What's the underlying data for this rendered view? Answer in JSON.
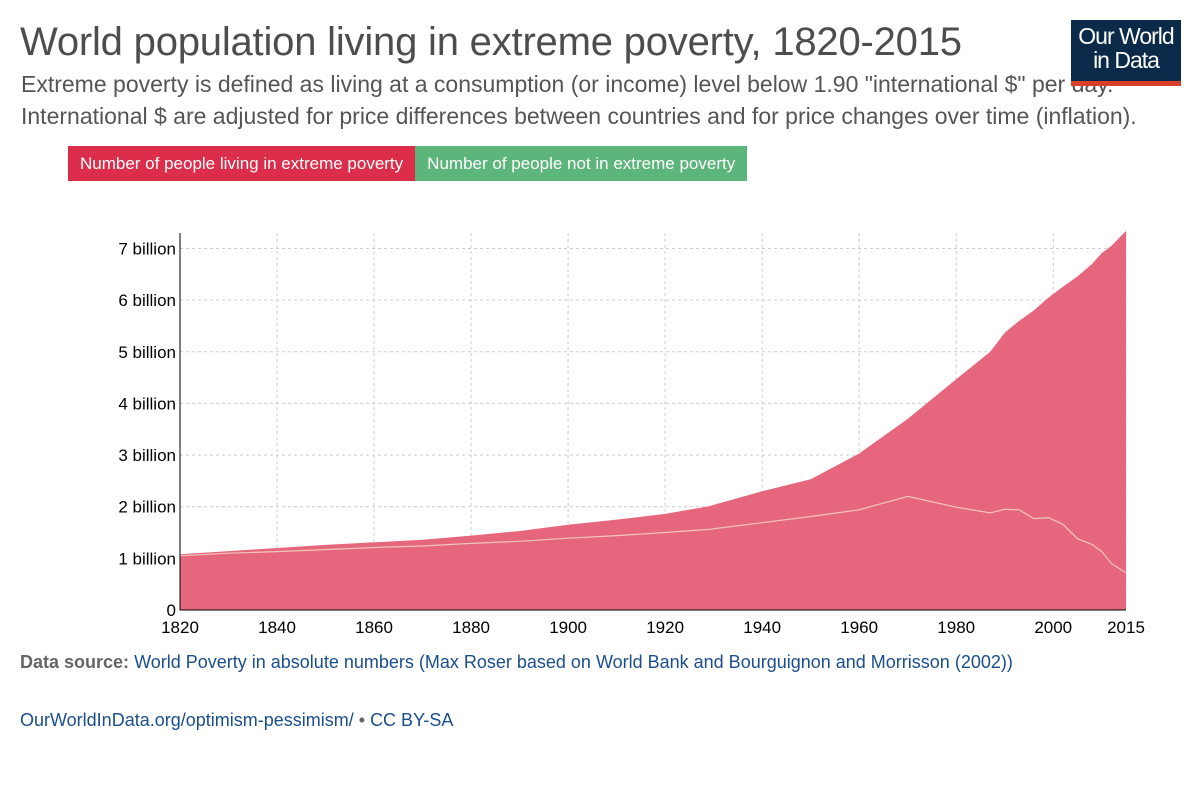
{
  "header": {
    "title": "World population living in extreme poverty, 1820-2015",
    "subtitle_line1": "Extreme poverty is defined as living at a consumption (or income) level below 1.90 \"international $\" per day.",
    "subtitle_line2": "International $ are adjusted for price differences between countries and for price changes over time (inflation).",
    "logo_line1": "Our World",
    "logo_line2": "in Data"
  },
  "colors": {
    "poverty": "#e6677d",
    "not_poverty": "#5cb57a",
    "legend_poverty": "#dc2d4a",
    "legend_not_poverty": "#5cb57a"
  },
  "chart_data": {
    "type": "area",
    "stacked": true,
    "title": "World population living in extreme poverty, 1820-2015",
    "xlabel": "",
    "ylabel": "",
    "xlim": [
      1820,
      2015
    ],
    "ylim": [
      0,
      7300000000
    ],
    "x_ticks": [
      1820,
      1840,
      1860,
      1880,
      1900,
      1920,
      1940,
      1960,
      1980,
      2000,
      2015
    ],
    "x_tick_labels": [
      "1820",
      "1840",
      "1860",
      "1880",
      "1900",
      "1920",
      "1940",
      "1960",
      "1980",
      "2000",
      "2015"
    ],
    "y_ticks": [
      0,
      1000000000,
      2000000000,
      3000000000,
      4000000000,
      5000000000,
      6000000000,
      7000000000
    ],
    "y_tick_labels": [
      "0",
      "1 billion",
      "2 billion",
      "3 billion",
      "4 billion",
      "5 billion",
      "6 billion",
      "7 billion"
    ],
    "grid": true,
    "legend_position": "top-left",
    "x": [
      1820,
      1830,
      1840,
      1850,
      1860,
      1870,
      1880,
      1890,
      1900,
      1910,
      1920,
      1929,
      1940,
      1950,
      1960,
      1970,
      1980,
      1987,
      1990,
      1993,
      1996,
      1999,
      2002,
      2005,
      2008,
      2010,
      2012,
      2015
    ],
    "series": [
      {
        "name": "Number of people living in extreme poverty",
        "values": [
          1050000000,
          1100000000,
          1130000000,
          1170000000,
          1210000000,
          1240000000,
          1290000000,
          1330000000,
          1390000000,
          1440000000,
          1500000000,
          1560000000,
          1690000000,
          1810000000,
          1940000000,
          2200000000,
          1990000000,
          1880000000,
          1950000000,
          1940000000,
          1770000000,
          1790000000,
          1660000000,
          1380000000,
          1270000000,
          1130000000,
          900000000,
          720000000
        ]
      },
      {
        "name": "Number of people not in extreme poverty",
        "values": [
          30000000,
          40000000,
          70000000,
          90000000,
          100000000,
          120000000,
          150000000,
          200000000,
          260000000,
          310000000,
          360000000,
          450000000,
          610000000,
          720000000,
          1090000000,
          1500000000,
          2480000000,
          3120000000,
          3420000000,
          3660000000,
          4030000000,
          4260000000,
          4600000000,
          5080000000,
          5430000000,
          5780000000,
          6150000000,
          6620000000
        ]
      }
    ]
  },
  "source": {
    "label": "Data source:",
    "text": "World Poverty in absolute numbers (Max Roser based on World Bank and Bourguignon and Morrisson (2002))"
  },
  "footer": {
    "url": "OurWorldInData.org/optimism-pessimism/",
    "separator": " • ",
    "license": "CC BY-SA"
  }
}
